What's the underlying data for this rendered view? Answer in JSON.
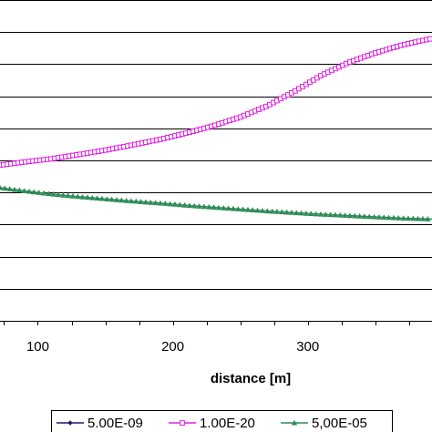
{
  "chart_data": {
    "type": "line",
    "xlabel": "distance  [m]",
    "ylabel": "",
    "title": "",
    "xlim": [
      72,
      392
    ],
    "x_ticks": [
      100,
      200,
      300
    ],
    "x_tick_labels": [
      "100",
      "200",
      "300"
    ],
    "ylim": [
      0,
      10
    ],
    "y_gridlines": [
      1,
      2,
      3,
      4,
      5,
      6,
      7,
      8,
      9,
      10
    ],
    "grid": true,
    "legend_position": "bottom",
    "series": [
      {
        "name": "5.00E-09",
        "color": "#1c1c6e",
        "marker": "diamond",
        "x": [
          72,
          90,
          110,
          130,
          150,
          170,
          190,
          210,
          230,
          250,
          270,
          290,
          310,
          330,
          350,
          370,
          392
        ],
        "y": [
          4.85,
          4.95,
          5.05,
          5.18,
          5.32,
          5.48,
          5.65,
          5.85,
          6.08,
          6.35,
          6.7,
          7.15,
          7.65,
          8.05,
          8.35,
          8.6,
          8.8
        ]
      },
      {
        "name": "1.00E-20",
        "color": "#e020e0",
        "marker": "square-open",
        "x": [
          72,
          90,
          110,
          130,
          150,
          170,
          190,
          210,
          230,
          250,
          270,
          290,
          310,
          330,
          350,
          370,
          392
        ],
        "y": [
          4.85,
          4.95,
          5.05,
          5.18,
          5.32,
          5.48,
          5.65,
          5.85,
          6.08,
          6.35,
          6.7,
          7.15,
          7.65,
          8.05,
          8.35,
          8.6,
          8.8
        ]
      },
      {
        "name": "5,00E-05",
        "color": "#2e8b57",
        "marker": "triangle",
        "x": [
          72,
          90,
          110,
          130,
          150,
          170,
          190,
          210,
          230,
          250,
          270,
          290,
          310,
          330,
          350,
          370,
          392
        ],
        "y": [
          4.15,
          4.05,
          3.95,
          3.87,
          3.8,
          3.73,
          3.67,
          3.6,
          3.54,
          3.48,
          3.42,
          3.37,
          3.32,
          3.28,
          3.24,
          3.2,
          3.17
        ]
      }
    ]
  }
}
